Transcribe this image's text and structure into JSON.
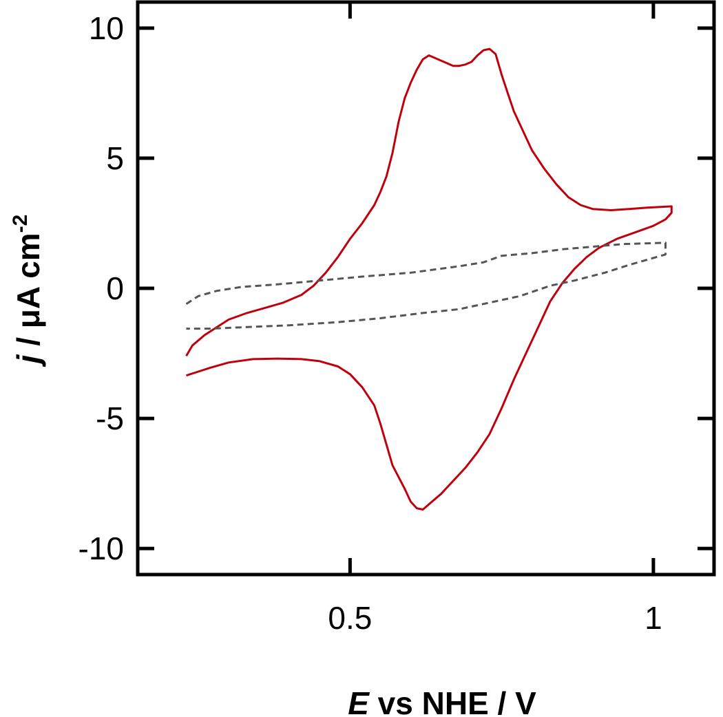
{
  "chart_data": {
    "type": "line",
    "xlabel_var": "E",
    "xlabel_rest": " vs NHE / V",
    "ylabel_var": "j",
    "ylabel_rest": " / μA cm",
    "ylabel_sup": "-2",
    "xlim": [
      0.15,
      1.1
    ],
    "ylim": [
      -11,
      11
    ],
    "x_ticks": [
      0.5,
      1.0
    ],
    "x_tick_labels": [
      "0.5",
      "1"
    ],
    "y_ticks": [
      10,
      5,
      0,
      -5,
      -10
    ],
    "y_tick_labels": [
      "10",
      "5",
      "0",
      "-5",
      "-10"
    ],
    "grid": false,
    "series": [
      {
        "style": "solid",
        "color": "#c0000b",
        "points": [
          [
            0.23,
            -2.6
          ],
          [
            0.24,
            -2.2
          ],
          [
            0.26,
            -1.8
          ],
          [
            0.28,
            -1.5
          ],
          [
            0.3,
            -1.2
          ],
          [
            0.33,
            -0.95
          ],
          [
            0.36,
            -0.75
          ],
          [
            0.39,
            -0.55
          ],
          [
            0.42,
            -0.25
          ],
          [
            0.44,
            0.1
          ],
          [
            0.46,
            0.6
          ],
          [
            0.48,
            1.2
          ],
          [
            0.5,
            1.9
          ],
          [
            0.52,
            2.5
          ],
          [
            0.54,
            3.2
          ],
          [
            0.55,
            3.7
          ],
          [
            0.56,
            4.3
          ],
          [
            0.57,
            5.2
          ],
          [
            0.58,
            6.4
          ],
          [
            0.59,
            7.3
          ],
          [
            0.6,
            7.9
          ],
          [
            0.61,
            8.4
          ],
          [
            0.62,
            8.8
          ],
          [
            0.63,
            8.95
          ],
          [
            0.64,
            8.85
          ],
          [
            0.65,
            8.75
          ],
          [
            0.66,
            8.65
          ],
          [
            0.67,
            8.55
          ],
          [
            0.68,
            8.55
          ],
          [
            0.69,
            8.6
          ],
          [
            0.7,
            8.7
          ],
          [
            0.71,
            8.95
          ],
          [
            0.72,
            9.15
          ],
          [
            0.73,
            9.2
          ],
          [
            0.74,
            9.0
          ],
          [
            0.75,
            8.2
          ],
          [
            0.76,
            7.5
          ],
          [
            0.77,
            6.8
          ],
          [
            0.78,
            6.3
          ],
          [
            0.79,
            5.8
          ],
          [
            0.8,
            5.3
          ],
          [
            0.82,
            4.6
          ],
          [
            0.84,
            4.0
          ],
          [
            0.86,
            3.5
          ],
          [
            0.88,
            3.2
          ],
          [
            0.9,
            3.05
          ],
          [
            0.93,
            3.0
          ],
          [
            0.96,
            3.05
          ],
          [
            0.99,
            3.1
          ],
          [
            1.03,
            3.15
          ],
          [
            1.03,
            2.9
          ],
          [
            1.02,
            2.65
          ],
          [
            1.0,
            2.4
          ],
          [
            0.97,
            2.15
          ],
          [
            0.94,
            1.9
          ],
          [
            0.91,
            1.55
          ],
          [
            0.89,
            1.2
          ],
          [
            0.87,
            0.75
          ],
          [
            0.85,
            0.2
          ],
          [
            0.83,
            -0.5
          ],
          [
            0.81,
            -1.5
          ],
          [
            0.79,
            -2.5
          ],
          [
            0.77,
            -3.5
          ],
          [
            0.75,
            -4.6
          ],
          [
            0.73,
            -5.6
          ],
          [
            0.71,
            -6.3
          ],
          [
            0.69,
            -6.9
          ],
          [
            0.67,
            -7.4
          ],
          [
            0.65,
            -7.9
          ],
          [
            0.63,
            -8.3
          ],
          [
            0.62,
            -8.5
          ],
          [
            0.61,
            -8.45
          ],
          [
            0.6,
            -8.2
          ],
          [
            0.59,
            -7.7
          ],
          [
            0.57,
            -6.8
          ],
          [
            0.56,
            -6.0
          ],
          [
            0.55,
            -5.2
          ],
          [
            0.54,
            -4.5
          ],
          [
            0.52,
            -3.8
          ],
          [
            0.5,
            -3.3
          ],
          [
            0.48,
            -3.0
          ],
          [
            0.45,
            -2.8
          ],
          [
            0.42,
            -2.72
          ],
          [
            0.38,
            -2.7
          ],
          [
            0.34,
            -2.72
          ],
          [
            0.3,
            -2.85
          ],
          [
            0.27,
            -3.05
          ],
          [
            0.25,
            -3.2
          ],
          [
            0.23,
            -3.35
          ]
        ]
      },
      {
        "style": "dashed",
        "color": "#555555",
        "points": [
          [
            0.23,
            -0.6
          ],
          [
            0.25,
            -0.3
          ],
          [
            0.28,
            -0.1
          ],
          [
            0.32,
            0.05
          ],
          [
            0.38,
            0.15
          ],
          [
            0.45,
            0.3
          ],
          [
            0.52,
            0.45
          ],
          [
            0.6,
            0.6
          ],
          [
            0.68,
            0.85
          ],
          [
            0.72,
            1.0
          ],
          [
            0.75,
            1.25
          ],
          [
            0.8,
            1.35
          ],
          [
            0.85,
            1.5
          ],
          [
            0.9,
            1.6
          ],
          [
            0.95,
            1.7
          ],
          [
            1.02,
            1.75
          ],
          [
            1.02,
            1.3
          ],
          [
            0.99,
            1.1
          ],
          [
            0.96,
            0.9
          ],
          [
            0.92,
            0.6
          ],
          [
            0.87,
            0.3
          ],
          [
            0.83,
            0.1
          ],
          [
            0.78,
            -0.3
          ],
          [
            0.73,
            -0.55
          ],
          [
            0.68,
            -0.8
          ],
          [
            0.62,
            -0.95
          ],
          [
            0.55,
            -1.15
          ],
          [
            0.48,
            -1.3
          ],
          [
            0.4,
            -1.42
          ],
          [
            0.32,
            -1.5
          ],
          [
            0.27,
            -1.55
          ],
          [
            0.23,
            -1.55
          ]
        ]
      }
    ]
  }
}
